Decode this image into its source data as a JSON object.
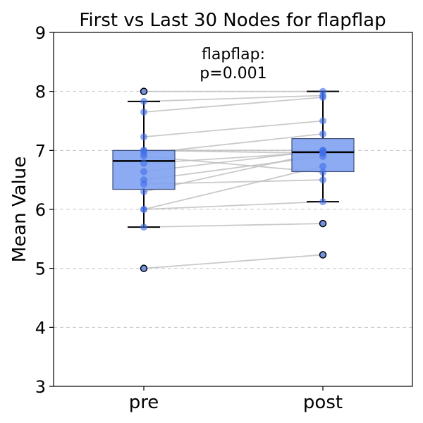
{
  "chart_data": {
    "type": "box",
    "title": "First vs Last 30 Nodes for flapflap",
    "annotation": [
      "flapflap:",
      "p=0.001"
    ],
    "xlabel": "",
    "ylabel": "Mean Value",
    "categories": [
      "pre",
      "post"
    ],
    "ylim": [
      3,
      9
    ],
    "yticks": [
      3,
      4,
      5,
      6,
      7,
      8,
      9
    ],
    "grid": true,
    "colors": {
      "box": "#7fa2f2",
      "point": "#3f6ee8",
      "pairline": "#bdbdbd"
    },
    "boxes": [
      {
        "category": "pre",
        "q1": 6.34,
        "median": 6.82,
        "q3": 7.0,
        "whisker_low": 5.7,
        "whisker_high": 7.83,
        "outliers": [
          5.0,
          8.0
        ]
      },
      {
        "category": "post",
        "q1": 6.64,
        "median": 6.97,
        "q3": 7.2,
        "whisker_low": 6.13,
        "whisker_high": 8.0,
        "outliers": [
          5.23,
          5.76
        ]
      }
    ],
    "pairs": [
      {
        "pre": 5.0,
        "post": 5.23
      },
      {
        "pre": 5.7,
        "post": 5.76
      },
      {
        "pre": 6.0,
        "post": 6.13
      },
      {
        "pre": 6.0,
        "post": 6.73
      },
      {
        "pre": 6.3,
        "post": 6.97
      },
      {
        "pre": 6.43,
        "post": 6.5
      },
      {
        "pre": 6.5,
        "post": 6.9
      },
      {
        "pre": 6.64,
        "post": 7.0
      },
      {
        "pre": 6.78,
        "post": 6.97
      },
      {
        "pre": 6.9,
        "post": 6.63
      },
      {
        "pre": 7.0,
        "post": 7.0
      },
      {
        "pre": 7.0,
        "post": 6.95
      },
      {
        "pre": 6.95,
        "post": 7.28
      },
      {
        "pre": 7.23,
        "post": 7.5
      },
      {
        "pre": 7.65,
        "post": 7.9
      },
      {
        "pre": 7.83,
        "post": 7.93
      },
      {
        "pre": 8.0,
        "post": 8.0
      }
    ]
  }
}
